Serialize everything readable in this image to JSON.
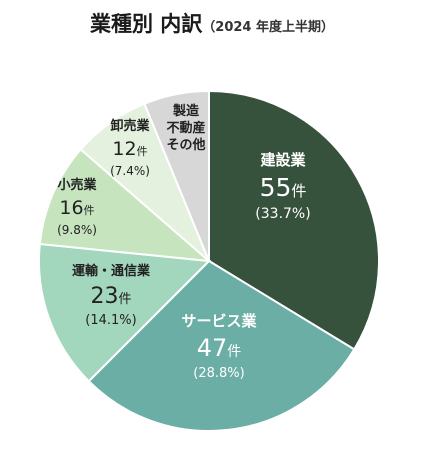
{
  "title": "業種別 内訳",
  "subtitle": "（2024 年度上半期）",
  "chart_data": {
    "type": "pie",
    "title": "業種別 内訳",
    "subtitle": "（2024 年度上半期）",
    "count_unit": "件",
    "slices": [
      {
        "label": "建設業",
        "count": 55,
        "percent_label": "(33.7%)",
        "value": 33.7,
        "color": "#36513c",
        "text_color": "#ffffff"
      },
      {
        "label": "サービス業",
        "count": 47,
        "percent_label": "(28.8%)",
        "value": 28.8,
        "color": "#6aaea6",
        "text_color": "#ffffff"
      },
      {
        "label": "運輸・通信業",
        "count": 23,
        "percent_label": "(14.1%)",
        "value": 14.1,
        "color": "#a3d7bd",
        "text_color": "#222222"
      },
      {
        "label": "小売業",
        "count": 16,
        "percent_label": "(9.8%)",
        "value": 9.8,
        "color": "#c6e4be",
        "text_color": "#222222"
      },
      {
        "label": "卸売業",
        "count": 12,
        "percent_label": "(7.4%)",
        "value": 7.4,
        "color": "#e4f1df",
        "text_color": "#222222"
      },
      {
        "label": "製造\n不動産\nその他",
        "count": null,
        "percent_label": "",
        "value": 6.2,
        "color": "#d7d7d7",
        "text_color": "#222222"
      }
    ]
  }
}
